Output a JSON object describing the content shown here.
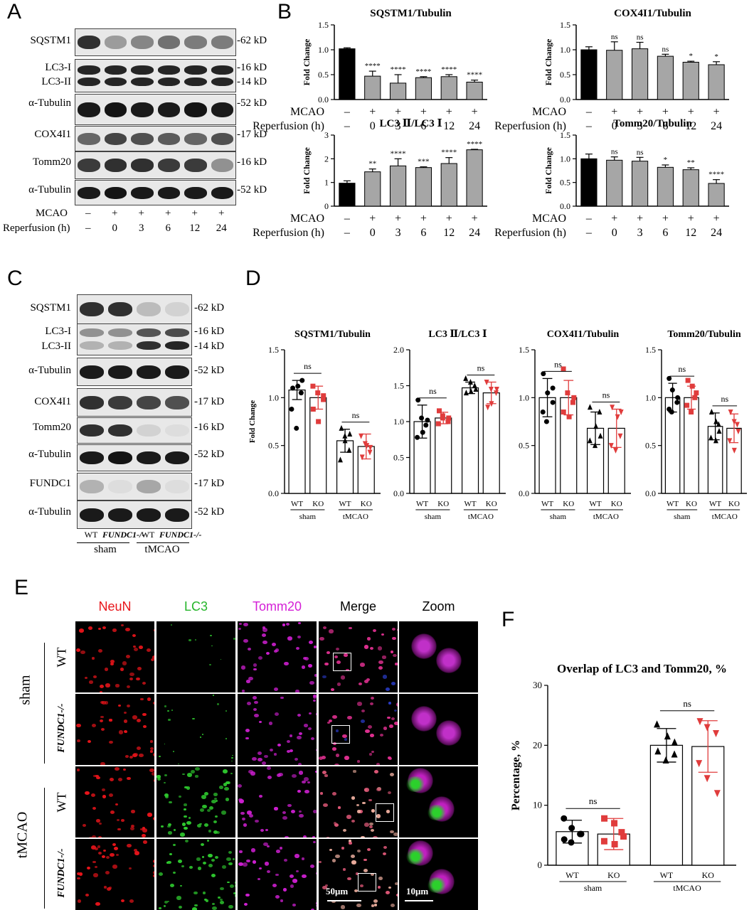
{
  "panels": {
    "A": "A",
    "B": "B",
    "C": "C",
    "D": "D",
    "E": "E",
    "F": "F"
  },
  "panel_a": {
    "blots": [
      "SQSTM1",
      "LC3-I",
      "LC3-II",
      "α-Tubulin",
      "COX4I1",
      "Tomm20",
      "α-Tubulin"
    ],
    "kd": [
      "-62 kD",
      "-16 kD",
      "-14 kD",
      "-52 kD",
      "-17 kD",
      "-16 kD",
      "-52 kD"
    ],
    "mcao_label": "MCAO",
    "rep_label": "Reperfusion (h)",
    "mcao": [
      "–",
      "+",
      "+",
      "+",
      "+",
      "+"
    ],
    "rep": [
      "–",
      "0",
      "3",
      "6",
      "12",
      "24"
    ]
  },
  "panel_c": {
    "blots": [
      "SQSTM1",
      "LC3-I",
      "LC3-II",
      "α-Tubulin",
      "COX4I1",
      "Tomm20",
      "α-Tubulin",
      "FUNDC1",
      "α-Tubulin"
    ],
    "kd": [
      "-62 kD",
      "-16 kD",
      "-14 kD",
      "-52 kD",
      "-17 kD",
      "-16 kD",
      "-52 kD",
      "-17 kD",
      "-52 kD"
    ],
    "lanes": [
      "WT",
      "FUNDC1-/-",
      "WT",
      "FUNDC1-/-"
    ],
    "groups": [
      "sham",
      "tMCAO"
    ]
  },
  "panel_e": {
    "channels": [
      "NeuN",
      "LC3",
      "Tomm20",
      "Merge",
      "Zoom"
    ],
    "channel_colors": [
      "#e8161b",
      "#25b52a",
      "#d41fd6",
      "#000000",
      "#000000"
    ],
    "groups": [
      "sham",
      "tMCAO"
    ],
    "rows": [
      "WT",
      "FUNDC1-/-",
      "WT",
      "FUNDC1-/-"
    ],
    "scale_merge": "50μm",
    "scale_zoom": "10μm"
  },
  "chart_data": [
    {
      "id": "B1",
      "type": "bar",
      "title": "SQSTM1/Tubulin",
      "ylabel": "Fold Change",
      "ylim": [
        0,
        1.5
      ],
      "yticks": [
        "0.0",
        "0.5",
        "1.0",
        "1.5"
      ],
      "categories": [
        "–|–",
        "+|0",
        "+|3",
        "+|6",
        "+|12",
        "+|24"
      ],
      "mcao": [
        "–",
        "+",
        "+",
        "+",
        "+",
        "+"
      ],
      "rep": [
        "–",
        "0",
        "3",
        "6",
        "12",
        "24"
      ],
      "values": [
        1.02,
        0.47,
        0.33,
        0.44,
        0.46,
        0.35
      ],
      "errors": [
        0.02,
        0.1,
        0.17,
        0.02,
        0.04,
        0.04
      ],
      "significance": [
        "",
        "****",
        "****",
        "****",
        "****",
        "****"
      ]
    },
    {
      "id": "B2",
      "type": "bar",
      "title": "COX4I1/Tubulin",
      "ylabel": "Fold Change",
      "ylim": [
        0,
        1.5
      ],
      "yticks": [
        "0.0",
        "0.5",
        "1.0",
        "1.5"
      ],
      "mcao": [
        "–",
        "+",
        "+",
        "+",
        "+",
        "+"
      ],
      "rep": [
        "–",
        "0",
        "3",
        "6",
        "12",
        "24"
      ],
      "values": [
        1.0,
        0.99,
        1.02,
        0.87,
        0.75,
        0.7
      ],
      "errors": [
        0.06,
        0.17,
        0.13,
        0.04,
        0.02,
        0.06
      ],
      "significance": [
        "",
        "ns",
        "ns",
        "ns",
        "*",
        "*"
      ]
    },
    {
      "id": "B3",
      "type": "bar",
      "title": "LC3 Ⅱ/LC3 Ⅰ",
      "ylabel": "Fold Change",
      "ylim": [
        0,
        3
      ],
      "yticks": [
        "0",
        "1",
        "2",
        "3"
      ],
      "mcao": [
        "–",
        "+",
        "+",
        "+",
        "+",
        "+"
      ],
      "rep": [
        "–",
        "0",
        "3",
        "6",
        "12",
        "24"
      ],
      "values": [
        0.97,
        1.45,
        1.7,
        1.63,
        1.8,
        2.38
      ],
      "errors": [
        0.1,
        0.12,
        0.3,
        0.03,
        0.25,
        0.02
      ],
      "significance": [
        "",
        "**",
        "****",
        "***",
        "****",
        "****"
      ]
    },
    {
      "id": "B4",
      "type": "bar",
      "title": "Tomm20/Tubulin",
      "ylabel": "Fold Change",
      "ylim": [
        0,
        1.5
      ],
      "yticks": [
        "0.0",
        "0.5",
        "1.0",
        "1.5"
      ],
      "mcao": [
        "–",
        "+",
        "+",
        "+",
        "+",
        "+"
      ],
      "rep": [
        "–",
        "0",
        "3",
        "6",
        "12",
        "24"
      ],
      "values": [
        1.0,
        0.97,
        0.95,
        0.82,
        0.77,
        0.48
      ],
      "errors": [
        0.1,
        0.07,
        0.08,
        0.05,
        0.04,
        0.08
      ],
      "significance": [
        "",
        "ns",
        "ns",
        "*",
        "**",
        "****"
      ]
    },
    {
      "id": "D1",
      "type": "bar",
      "title": "SQSTM1/Tubulin",
      "ylabel": "Fold Change",
      "ylim": [
        0,
        1.5
      ],
      "yticks": [
        "0.0",
        "0.5",
        "1.0",
        "1.5"
      ],
      "categories": [
        "WT",
        "KO",
        "WT",
        "KO"
      ],
      "groups": [
        "sham",
        "tMCAO"
      ],
      "values": [
        1.08,
        1.0,
        0.55,
        0.49
      ],
      "errors": [
        0.1,
        0.12,
        0.12,
        0.13
      ],
      "points": [
        [
          1.1,
          1.12,
          1.05,
          0.88,
          0.68,
          1.18
        ],
        [
          1.12,
          1.05,
          0.98,
          0.88,
          0.75,
          1.02
        ],
        [
          0.68,
          0.55,
          0.45,
          0.35,
          0.6,
          0.62
        ],
        [
          0.6,
          0.5,
          0.43,
          0.38,
          0.52,
          0.48
        ]
      ],
      "significance": [
        "ns",
        "ns"
      ]
    },
    {
      "id": "D2",
      "type": "bar",
      "title": "LC3 Ⅱ/LC3 Ⅰ",
      "ylim": [
        0,
        2.0
      ],
      "yticks": [
        "0.0",
        "0.5",
        "1.0",
        "1.5",
        "2.0"
      ],
      "categories": [
        "WT",
        "KO",
        "WT",
        "KO"
      ],
      "groups": [
        "sham",
        "tMCAO"
      ],
      "values": [
        1.0,
        1.05,
        1.47,
        1.4
      ],
      "errors": [
        0.23,
        0.08,
        0.08,
        0.15
      ],
      "points": [
        [
          1.3,
          0.85,
          0.95,
          0.78,
          1.05,
          1.02
        ],
        [
          1.15,
          1.05,
          1.0,
          0.97,
          1.08,
          1.05
        ],
        [
          1.6,
          1.55,
          1.45,
          1.4,
          1.42,
          1.5
        ],
        [
          1.55,
          1.45,
          1.4,
          1.2,
          1.25,
          1.45
        ]
      ],
      "significance": [
        "ns",
        "ns"
      ]
    },
    {
      "id": "D3",
      "type": "bar",
      "title": "COX4I1/Tubulin",
      "ylim": [
        0,
        1.5
      ],
      "yticks": [
        "0.0",
        "0.5",
        "1.0",
        "1.5"
      ],
      "categories": [
        "WT",
        "KO",
        "WT",
        "KO"
      ],
      "groups": [
        "sham",
        "tMCAO"
      ],
      "values": [
        1.0,
        1.0,
        0.68,
        0.68
      ],
      "errors": [
        0.2,
        0.18,
        0.17,
        0.2
      ],
      "points": [
        [
          1.25,
          1.05,
          0.95,
          0.85,
          0.75,
          1.1
        ],
        [
          1.3,
          1.05,
          0.95,
          0.85,
          0.8,
          1.0
        ],
        [
          0.9,
          0.7,
          0.6,
          0.55,
          0.5,
          0.85
        ],
        [
          0.9,
          0.8,
          0.6,
          0.5,
          0.45,
          0.85
        ]
      ],
      "significance": [
        "ns",
        "ns"
      ]
    },
    {
      "id": "D4",
      "type": "bar",
      "title": "Tomm20/Tubulin",
      "ylim": [
        0,
        1.5
      ],
      "yticks": [
        "0.0",
        "0.5",
        "1.0",
        "1.5"
      ],
      "categories": [
        "WT",
        "KO",
        "WT",
        "KO"
      ],
      "groups": [
        "sham",
        "tMCAO"
      ],
      "values": [
        1.0,
        1.0,
        0.7,
        0.68
      ],
      "errors": [
        0.15,
        0.12,
        0.14,
        0.15
      ],
      "points": [
        [
          1.2,
          1.08,
          0.95,
          0.88,
          0.85,
          1.0
        ],
        [
          1.18,
          1.12,
          1.0,
          0.92,
          0.85,
          1.05
        ],
        [
          0.85,
          0.75,
          0.65,
          0.58,
          0.55,
          0.72
        ],
        [
          0.85,
          0.75,
          0.65,
          0.55,
          0.45,
          0.72
        ]
      ],
      "significance": [
        "ns",
        "ns"
      ]
    },
    {
      "id": "F",
      "type": "bar",
      "title": "Overlap of LC3 and Tomm20, %",
      "ylabel": "Percentage, %",
      "ylim": [
        0,
        30
      ],
      "yticks": [
        "0",
        "10",
        "20",
        "30"
      ],
      "categories": [
        "WT",
        "KO",
        "WT",
        "KO"
      ],
      "groups": [
        "sham",
        "tMCAO"
      ],
      "values": [
        5.6,
        5.2,
        20,
        19.8
      ],
      "errors": [
        1.9,
        2.6,
        2.8,
        4.3
      ],
      "points": [
        [
          7.8,
          6.2,
          5.2,
          4.3,
          3.8,
          5.2
        ],
        [
          7.8,
          7.0,
          5.5,
          4.0,
          3.5,
          4.8
        ],
        [
          23.5,
          21.5,
          20.5,
          19,
          17.5,
          18.5
        ],
        [
          24,
          23,
          22,
          17,
          14.5,
          12
        ]
      ],
      "significance": [
        "ns",
        "ns"
      ]
    }
  ],
  "colors": {
    "wt": "#000000",
    "ko": "#e03c3c",
    "grey_bar": "#a6a6a6",
    "black_bar": "#000000"
  }
}
